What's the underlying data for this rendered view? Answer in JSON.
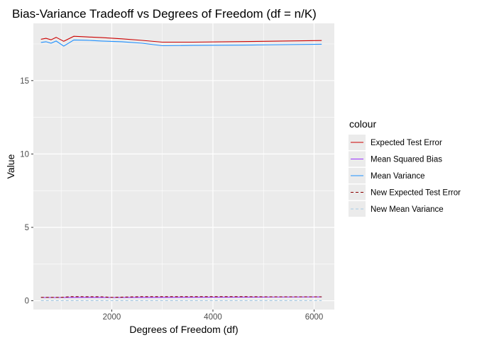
{
  "chart_data": {
    "type": "line",
    "title": "Bias-Variance Tradeoff vs Degrees of Freedom (df = n/K)",
    "xlabel": "Degrees of Freedom (df)",
    "ylabel": "Value",
    "xlim": [
      450,
      6400
    ],
    "ylim": [
      -0.6,
      18.9
    ],
    "xticks": [
      2000,
      4000,
      6000
    ],
    "yticks": [
      0,
      5,
      10,
      15
    ],
    "grid": true,
    "legend_title": "colour",
    "legend_position": "right",
    "series": [
      {
        "name": "Expected Test Error",
        "color": "#cc0000",
        "dash": "solid",
        "points": [
          [
            600,
            17.82
          ],
          [
            700,
            17.88
          ],
          [
            800,
            17.78
          ],
          [
            900,
            17.95
          ],
          [
            1050,
            17.68
          ],
          [
            1250,
            18.02
          ],
          [
            1500,
            17.98
          ],
          [
            1800,
            17.93
          ],
          [
            2200,
            17.85
          ],
          [
            2600,
            17.74
          ],
          [
            3000,
            17.62
          ],
          [
            3600,
            17.62
          ],
          [
            4600,
            17.66
          ],
          [
            6150,
            17.73
          ]
        ]
      },
      {
        "name": "Mean Squared Bias",
        "color": "#9b30ff",
        "dash": "solid",
        "points": [
          [
            600,
            0.22
          ],
          [
            1000,
            0.22
          ],
          [
            1500,
            0.23
          ],
          [
            2000,
            0.22
          ],
          [
            3000,
            0.23
          ],
          [
            4000,
            0.24
          ],
          [
            5000,
            0.25
          ],
          [
            6150,
            0.26
          ]
        ]
      },
      {
        "name": "Mean Variance",
        "color": "#1e90ff",
        "dash": "solid",
        "points": [
          [
            600,
            17.6
          ],
          [
            700,
            17.65
          ],
          [
            800,
            17.55
          ],
          [
            900,
            17.7
          ],
          [
            1050,
            17.35
          ],
          [
            1250,
            17.77
          ],
          [
            1500,
            17.75
          ],
          [
            1800,
            17.7
          ],
          [
            2200,
            17.65
          ],
          [
            2600,
            17.55
          ],
          [
            3000,
            17.38
          ],
          [
            3600,
            17.4
          ],
          [
            4600,
            17.42
          ],
          [
            6150,
            17.48
          ]
        ]
      },
      {
        "name": "New Expected Test Error",
        "color": "#8b0000",
        "dash": "dashed",
        "points": [
          [
            600,
            0.23
          ],
          [
            1000,
            0.23
          ],
          [
            1200,
            0.28
          ],
          [
            1800,
            0.27
          ],
          [
            2000,
            0.23
          ],
          [
            2600,
            0.28
          ],
          [
            4600,
            0.28
          ],
          [
            5000,
            0.27
          ],
          [
            6150,
            0.27
          ]
        ]
      },
      {
        "name": "New Mean Variance",
        "color": "#a6cbe6",
        "dash": "dashed",
        "points": [
          [
            600,
            0.01
          ],
          [
            6150,
            0.01
          ]
        ]
      }
    ]
  }
}
